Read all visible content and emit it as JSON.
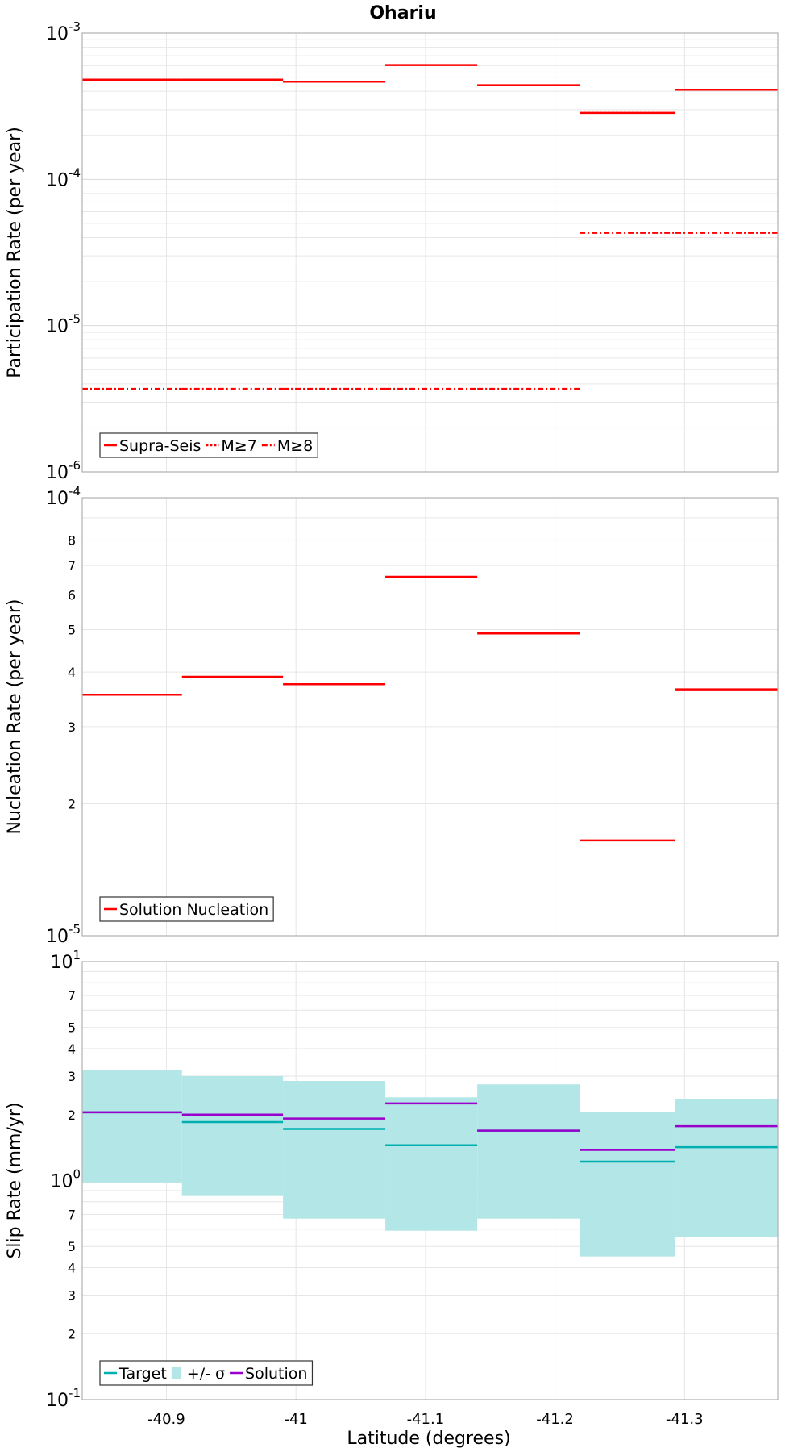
{
  "title": "Ohariu",
  "xlabel": "Latitude (degrees)",
  "xlim": [
    -40.835,
    -41.372
  ],
  "x_ticks": [
    -40.9,
    -41,
    -41.1,
    -41.2,
    -41.3
  ],
  "x_tick_labels": [
    "-40.9",
    "-41",
    "-41.1",
    "-41.2",
    "-41.3"
  ],
  "colors": {
    "red": "#ff0000",
    "teal": "#00b0b0",
    "band": "#b3e6e6",
    "purple": "#9900cc"
  },
  "chart_data": [
    {
      "type": "line",
      "ylabel": "Participation Rate (per year)",
      "yscale": "log",
      "ylim": [
        1e-06,
        0.001
      ],
      "major_ticks": [
        {
          "base": "10",
          "exp": "-6",
          "value": 1e-06
        },
        {
          "base": "10",
          "exp": "-5",
          "value": 1e-05
        },
        {
          "base": "10",
          "exp": "-4",
          "value": 0.0001
        },
        {
          "base": "10",
          "exp": "-3",
          "value": 0.001
        }
      ],
      "minor_tick_labels": [],
      "legend": {
        "position": "bottom-left",
        "entries": [
          "Supra-Seis",
          "M≥7",
          "M≥8"
        ]
      },
      "segments_x": [
        [
          -40.835,
          -40.912
        ],
        [
          -40.912,
          -40.99
        ],
        [
          -40.99,
          -41.069
        ],
        [
          -41.069,
          -41.14
        ],
        [
          -41.14,
          -41.219
        ],
        [
          -41.219,
          -41.293
        ],
        [
          -41.293,
          -41.372
        ]
      ],
      "series": [
        {
          "name": "Supra-Seis",
          "style": "solid",
          "values": [
            0.00048,
            0.00048,
            0.000465,
            0.000605,
            0.00044,
            0.000285,
            0.00041
          ]
        },
        {
          "name": "M≥7",
          "style": "dotted",
          "values": [
            0.00048,
            0.00048,
            0.000465,
            0.000605,
            0.00044,
            0.000285,
            0.00041
          ]
        },
        {
          "name": "M≥8",
          "style": "dashdot",
          "values": [
            3.7e-06,
            3.7e-06,
            3.7e-06,
            3.7e-06,
            3.7e-06,
            4.3e-05,
            4.3e-05
          ]
        }
      ]
    },
    {
      "type": "line",
      "ylabel": "Nucleation Rate (per year)",
      "yscale": "log",
      "ylim": [
        1e-05,
        0.0001
      ],
      "major_ticks": [
        {
          "base": "10",
          "exp": "-5",
          "value": 1e-05
        },
        {
          "base": "10",
          "exp": "-4",
          "value": 0.0001
        }
      ],
      "minor_tick_labels": [
        {
          "label": "2",
          "value": 2e-05
        },
        {
          "label": "3",
          "value": 3e-05
        },
        {
          "label": "4",
          "value": 4e-05
        },
        {
          "label": "5",
          "value": 5e-05
        },
        {
          "label": "6",
          "value": 6e-05
        },
        {
          "label": "7",
          "value": 7e-05
        },
        {
          "label": "8",
          "value": 8e-05
        }
      ],
      "legend": {
        "position": "bottom-left",
        "entries": [
          "Solution Nucleation"
        ]
      },
      "segments_x": [
        [
          -40.835,
          -40.912
        ],
        [
          -40.912,
          -40.99
        ],
        [
          -40.99,
          -41.069
        ],
        [
          -41.069,
          -41.14
        ],
        [
          -41.14,
          -41.219
        ],
        [
          -41.219,
          -41.293
        ],
        [
          -41.293,
          -41.372
        ]
      ],
      "series": [
        {
          "name": "Solution Nucleation",
          "style": "solid",
          "values": [
            3.55e-05,
            3.9e-05,
            3.75e-05,
            6.6e-05,
            4.9e-05,
            1.65e-05,
            3.65e-05
          ]
        }
      ]
    },
    {
      "type": "area",
      "ylabel": "Slip Rate (mm/yr)",
      "yscale": "log",
      "ylim": [
        0.1,
        10
      ],
      "major_ticks": [
        {
          "base": "10",
          "exp": "-1",
          "value": 0.1
        },
        {
          "base": "10",
          "exp": "0",
          "value": 1
        },
        {
          "base": "10",
          "exp": "1",
          "value": 10
        }
      ],
      "minor_tick_labels": [
        {
          "label": "2",
          "value": 0.2
        },
        {
          "label": "3",
          "value": 0.3
        },
        {
          "label": "4",
          "value": 0.4
        },
        {
          "label": "5",
          "value": 0.5
        },
        {
          "label": "7",
          "value": 0.7
        },
        {
          "label": "2",
          "value": 2
        },
        {
          "label": "3",
          "value": 3
        },
        {
          "label": "4",
          "value": 4
        },
        {
          "label": "5",
          "value": 5
        },
        {
          "label": "7",
          "value": 7
        }
      ],
      "legend": {
        "position": "bottom-left",
        "entries": [
          "Target",
          "+/- σ",
          "Solution"
        ]
      },
      "segments_x": [
        [
          -40.835,
          -40.912
        ],
        [
          -40.912,
          -40.99
        ],
        [
          -40.99,
          -41.069
        ],
        [
          -41.069,
          -41.14
        ],
        [
          -41.14,
          -41.219
        ],
        [
          -41.219,
          -41.293
        ],
        [
          -41.293,
          -41.372
        ]
      ],
      "band": {
        "name": "+/- σ",
        "lower": [
          0.98,
          0.85,
          0.67,
          0.59,
          0.67,
          0.45,
          0.55
        ],
        "upper": [
          3.2,
          3.0,
          2.85,
          2.4,
          2.75,
          2.05,
          2.35
        ]
      },
      "series": [
        {
          "name": "Target",
          "style": "solid",
          "values": [
            2.05,
            1.85,
            1.72,
            1.45,
            1.69,
            1.22,
            1.42
          ]
        },
        {
          "name": "Solution",
          "style": "solid",
          "values": [
            2.05,
            2.0,
            1.92,
            2.25,
            1.69,
            1.38,
            1.77
          ]
        }
      ]
    }
  ]
}
